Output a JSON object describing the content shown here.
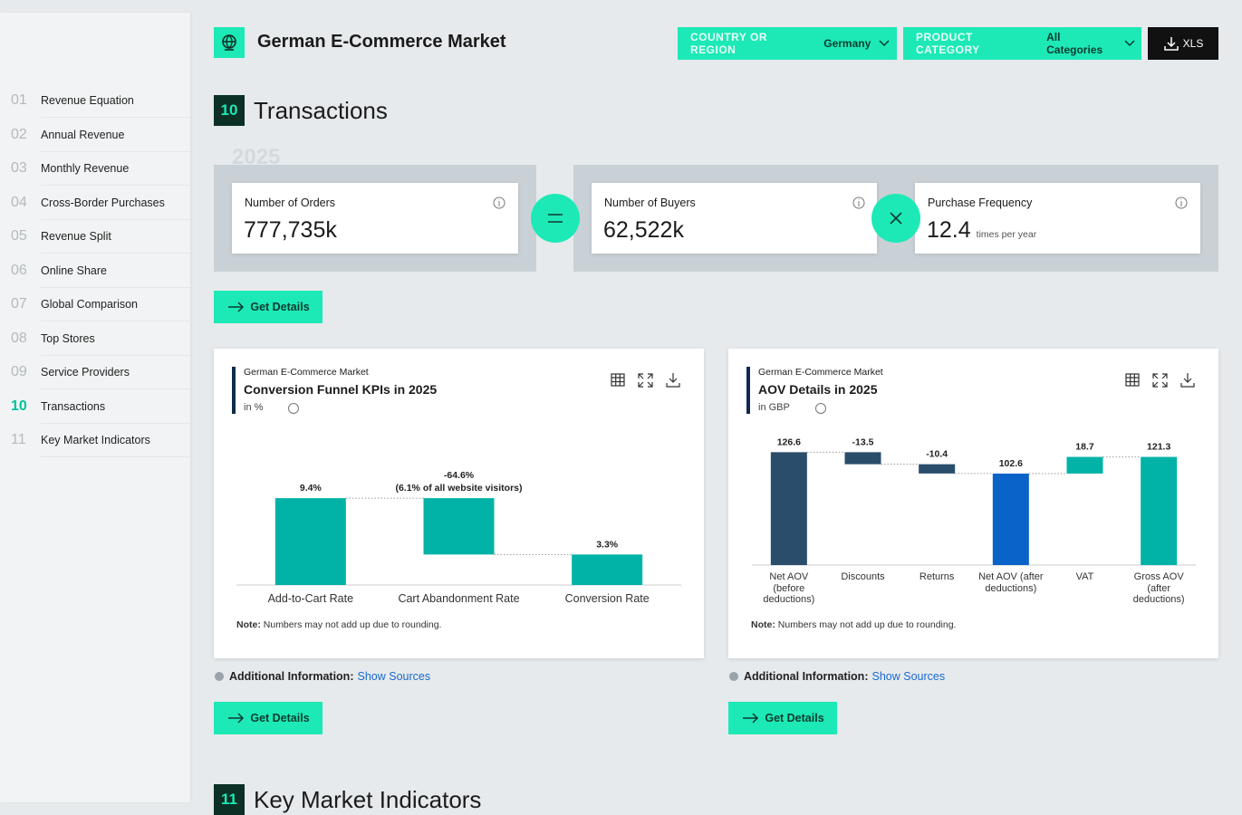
{
  "header": {
    "title": "German E-Commerce Market",
    "filters": [
      {
        "label": "COUNTRY OR REGION",
        "value": "Germany"
      },
      {
        "label": "PRODUCT CATEGORY",
        "value": "All Categories"
      }
    ],
    "export": "XLS"
  },
  "nav": [
    {
      "number": "01",
      "label": "Revenue Equation"
    },
    {
      "number": "02",
      "label": "Annual Revenue"
    },
    {
      "number": "03",
      "label": "Monthly Revenue"
    },
    {
      "number": "04",
      "label": "Cross-Border Purchases"
    },
    {
      "number": "05",
      "label": "Revenue Split"
    },
    {
      "number": "06",
      "label": "Online Share"
    },
    {
      "number": "07",
      "label": "Global Comparison"
    },
    {
      "number": "08",
      "label": "Top Stores"
    },
    {
      "number": "09",
      "label": "Service Providers"
    },
    {
      "number": "10",
      "label": "Transactions",
      "active": true
    },
    {
      "number": "11",
      "label": "Key Market Indicators"
    }
  ],
  "section": {
    "number": "10",
    "title": "Transactions",
    "year": "2025",
    "kpis": [
      {
        "label": "Number of Orders",
        "value": "777,735k"
      },
      {
        "label": "Number of Buyers",
        "value": "62,522k"
      },
      {
        "label": "Purchase Frequency",
        "value": "12.4",
        "unit": "times per year"
      }
    ],
    "button": "Get Details"
  },
  "chart_data": [
    {
      "type": "waterfall",
      "supertitle": "German E-Commerce Market",
      "title": "Conversion Funnel KPIs in 2025",
      "subtitle": "in %",
      "categories": [
        "Add-to-Cart Rate",
        "Cart Abandonment Rate",
        "Conversion Rate"
      ],
      "measure": [
        "absolute",
        "relative",
        "absolute"
      ],
      "values": [
        9.4,
        -6.1,
        3.3
      ],
      "value_labels": [
        "9.4%",
        "(6.1% of all website visitors)",
        "3.3%"
      ],
      "change_labels": [
        null,
        "-64.6%",
        null
      ],
      "colors": [
        "#00b3a6",
        "#00b3a6",
        "#00b3a6"
      ],
      "ylim": [
        0,
        10
      ],
      "note_label": "Note:",
      "note": "Numbers may not add up due to rounding.",
      "info_label": "Additional Information:",
      "info_link": "Show Sources",
      "button": "Get Details"
    },
    {
      "type": "waterfall",
      "supertitle": "German E-Commerce Market",
      "title": "AOV Details in 2025",
      "subtitle": "in GBP",
      "categories": [
        "Net AOV (before deductions)",
        "Discounts",
        "Returns",
        "Net AOV (after deductions)",
        "VAT",
        "Gross AOV (after deductions)"
      ],
      "measure": [
        "absolute",
        "relative",
        "relative",
        "absolute",
        "relative",
        "absolute"
      ],
      "values": [
        126.6,
        -13.5,
        -10.4,
        102.6,
        18.7,
        121.3
      ],
      "colors": [
        "#2a4d6b",
        "#2a4d6b",
        "#2a4d6b",
        "#0a63c9",
        "#00b3a6",
        "#00b3a6"
      ],
      "ylim": [
        0,
        130
      ],
      "note_label": "Note:",
      "note": "Numbers may not add up due to rounding.",
      "info_label": "Additional Information:",
      "info_link": "Show Sources",
      "button": "Get Details"
    }
  ],
  "next_section": {
    "number": "11",
    "title": "Key Market Indicators"
  }
}
